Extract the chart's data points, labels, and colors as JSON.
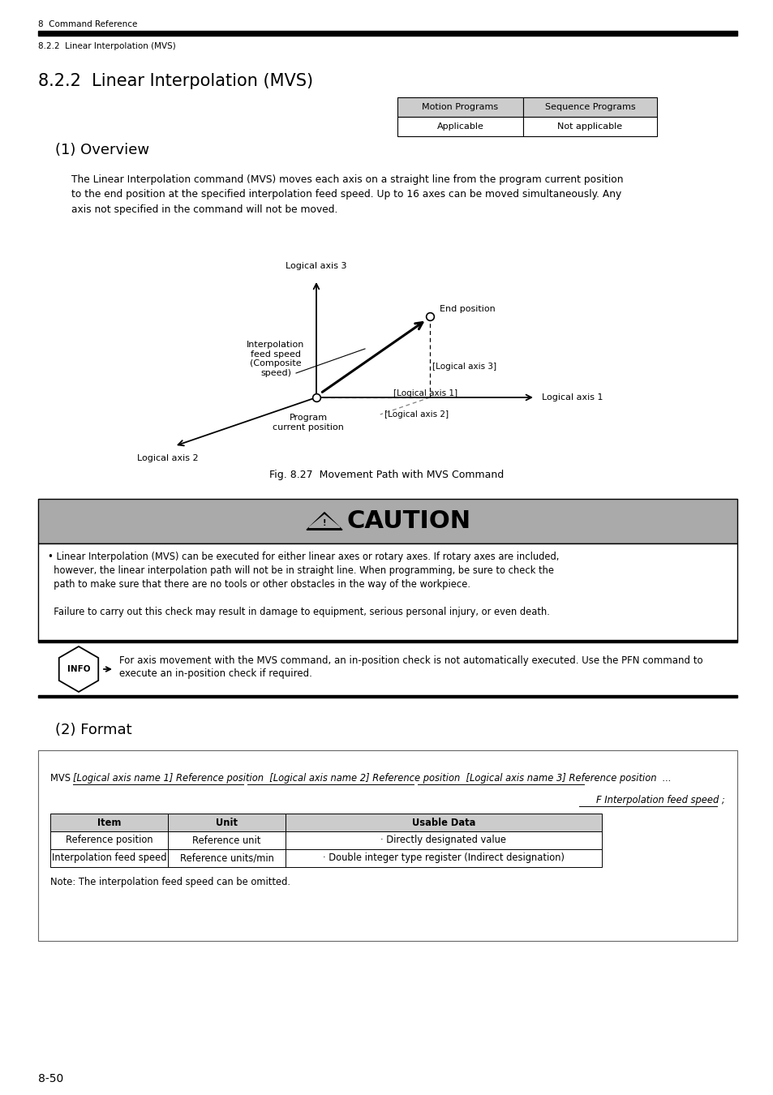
{
  "page_title_top": "8  Command Reference",
  "page_subtitle_top": "8.2.2  Linear Interpolation (MVS)",
  "section_title": "8.2.2  Linear Interpolation (MVS)",
  "table_header": [
    "Motion Programs",
    "Sequence Programs"
  ],
  "table_row": [
    "Applicable",
    "Not applicable"
  ],
  "subsection1": "(1) Overview",
  "overview_text": "The Linear Interpolation command (MVS) moves each axis on a straight line from the program current position\nto the end position at the specified interpolation feed speed. Up to 16 axes can be moved simultaneously. Any\naxis not specified in the command will not be moved.",
  "fig_caption": "Fig. 8.27  Movement Path with MVS Command",
  "caution_bullet_line1": "• Linear Interpolation (MVS) can be executed for either linear axes or rotary axes. If rotary axes are included,",
  "caution_bullet_line2": "  however, the linear interpolation path will not be in straight line. When programming, be sure to check the",
  "caution_bullet_line3": "  path to make sure that there are no tools or other obstacles in the way of the workpiece.",
  "caution_bullet_line4": "  Failure to carry out this check may result in damage to equipment, serious personal injury, or even death.",
  "info_text_line1": "For axis movement with the MVS command, an in-position check is not automatically executed. Use the PFN command to",
  "info_text_line2": "execute an in-position check if required.",
  "subsection2": "(2) Format",
  "format_mvs": "MVS  ",
  "format_rest": "[Logical axis name 1] Reference position  [Logical axis name 2] Reference position  [Logical axis name 3] Reference position  ...",
  "format_line2": "F Interpolation feed speed ;",
  "format_table_headers": [
    "Item",
    "Unit",
    "Usable Data"
  ],
  "format_table_rows": [
    [
      "Reference position",
      "Reference unit",
      "· Directly designated value"
    ],
    [
      "Interpolation feed speed",
      "Reference units/min",
      "· Double integer type register (Indirect designation)"
    ]
  ],
  "format_note": "Note: The interpolation feed speed can be omitted.",
  "page_number": "8-50",
  "bg_color": "#ffffff",
  "header_bar_color": "#000000",
  "caution_header_bg": "#aaaaaa",
  "caution_border": "#000000",
  "table_header_bg": "#cccccc",
  "format_box_border": "#666666"
}
